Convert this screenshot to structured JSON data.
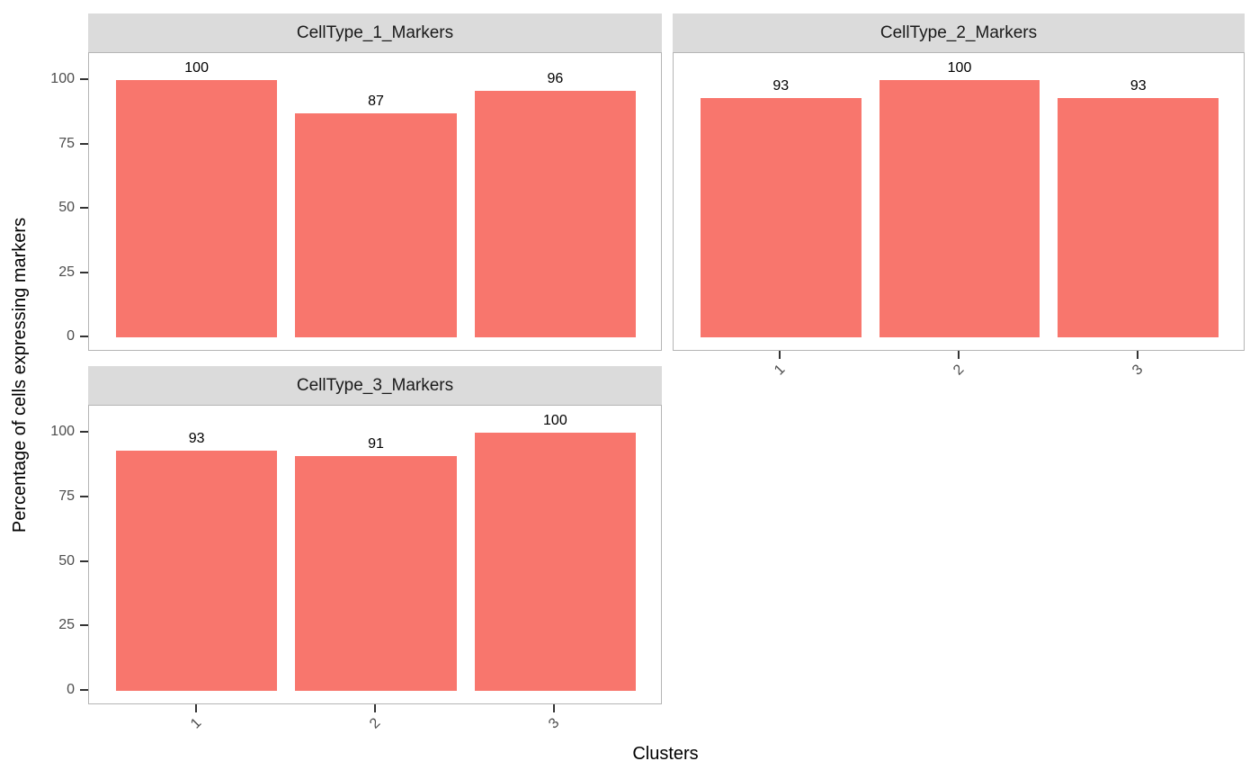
{
  "chart_data": {
    "type": "bar",
    "layout": "facet_wrap, 2 columns, 2 rows (bottom-right cell empty)",
    "facets": [
      {
        "label": "CellType_1_Markers",
        "values": [
          100,
          87,
          96
        ],
        "grid": {
          "row": 0,
          "col": 0
        },
        "show_y_axis": true,
        "show_x_axis": false
      },
      {
        "label": "CellType_2_Markers",
        "values": [
          93,
          100,
          93
        ],
        "grid": {
          "row": 0,
          "col": 1
        },
        "show_y_axis": false,
        "show_x_axis": true
      },
      {
        "label": "CellType_3_Markers",
        "values": [
          93,
          91,
          100
        ],
        "grid": {
          "row": 1,
          "col": 0
        },
        "show_y_axis": true,
        "show_x_axis": true
      }
    ],
    "categories": [
      "1",
      "2",
      "3"
    ],
    "bar_value_labels": [
      [
        "100",
        "87",
        "96"
      ],
      [
        "93",
        "100",
        "93"
      ],
      [
        "93",
        "91",
        "100"
      ]
    ],
    "xlabel": "Clusters",
    "ylabel": "Percentage of cells expressing markers",
    "y_ticks": [
      0,
      25,
      50,
      75,
      100
    ],
    "ylim": [
      0,
      100
    ],
    "grid": "off",
    "legend": "none",
    "x_tick_label_angle": 45
  },
  "colors": {
    "bar_fill": "#F8766D",
    "strip_background": "#DBDBDB",
    "panel_background": "#FFFFFF",
    "panel_border": "#B5B5B5",
    "axis_tick": "#333333",
    "tick_label_text": "#4D4D4D",
    "title_text": "#000000",
    "figure_background": "#FFFFFF"
  }
}
